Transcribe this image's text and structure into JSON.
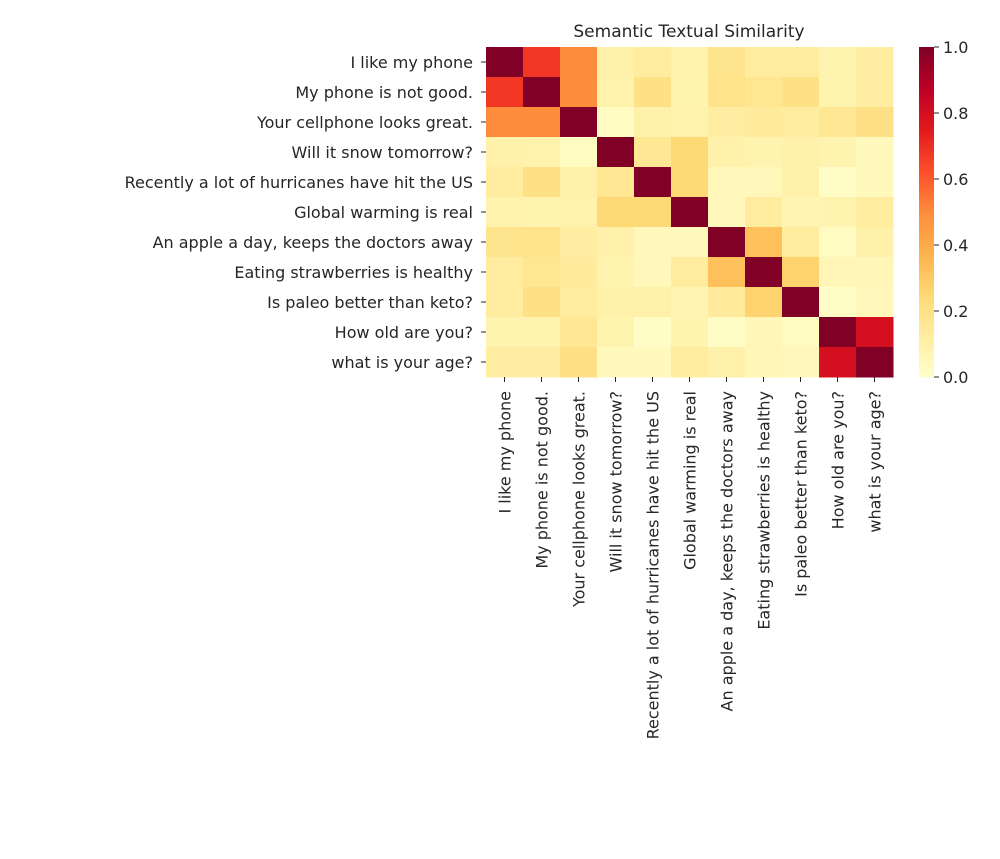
{
  "chart_data": {
    "type": "heatmap",
    "title": "Semantic Textual Similarity",
    "labels": [
      "I like my phone",
      "My phone is not good.",
      "Your cellphone looks great.",
      "Will it snow tomorrow?",
      "Recently a lot of hurricanes have hit the US",
      "Global warming is real",
      "An apple a day, keeps the doctors away",
      "Eating strawberries is healthy",
      "Is paleo better than keto?",
      "How old are you?",
      "what is your age?"
    ],
    "values": [
      [
        1.0,
        0.68,
        0.5,
        0.1,
        0.13,
        0.09,
        0.18,
        0.13,
        0.13,
        0.08,
        0.12
      ],
      [
        0.68,
        1.0,
        0.5,
        0.09,
        0.2,
        0.08,
        0.19,
        0.17,
        0.2,
        0.08,
        0.12
      ],
      [
        0.5,
        0.5,
        1.0,
        0.03,
        0.1,
        0.09,
        0.12,
        0.14,
        0.13,
        0.16,
        0.2
      ],
      [
        0.1,
        0.09,
        0.03,
        1.0,
        0.16,
        0.25,
        0.1,
        0.08,
        0.1,
        0.08,
        0.04
      ],
      [
        0.13,
        0.2,
        0.1,
        0.16,
        1.0,
        0.25,
        0.05,
        0.05,
        0.1,
        0.02,
        0.04
      ],
      [
        0.09,
        0.08,
        0.09,
        0.25,
        0.25,
        1.0,
        0.05,
        0.13,
        0.07,
        0.08,
        0.13
      ],
      [
        0.18,
        0.19,
        0.12,
        0.1,
        0.05,
        0.05,
        1.0,
        0.33,
        0.13,
        0.03,
        0.1
      ],
      [
        0.13,
        0.17,
        0.14,
        0.08,
        0.05,
        0.13,
        0.33,
        1.0,
        0.27,
        0.06,
        0.06
      ],
      [
        0.13,
        0.2,
        0.13,
        0.1,
        0.1,
        0.07,
        0.14,
        0.27,
        1.0,
        0.02,
        0.05
      ],
      [
        0.08,
        0.08,
        0.16,
        0.08,
        0.02,
        0.08,
        0.02,
        0.06,
        0.03,
        1.0,
        0.8
      ],
      [
        0.12,
        0.12,
        0.2,
        0.04,
        0.04,
        0.13,
        0.1,
        0.06,
        0.05,
        0.8,
        1.0
      ]
    ],
    "colormap": "YlOrRd",
    "vmin": 0.0,
    "vmax": 1.0,
    "colorbar_ticks": [
      "0.0",
      "0.2",
      "0.4",
      "0.6",
      "0.8",
      "1.0"
    ],
    "grid": false
  }
}
